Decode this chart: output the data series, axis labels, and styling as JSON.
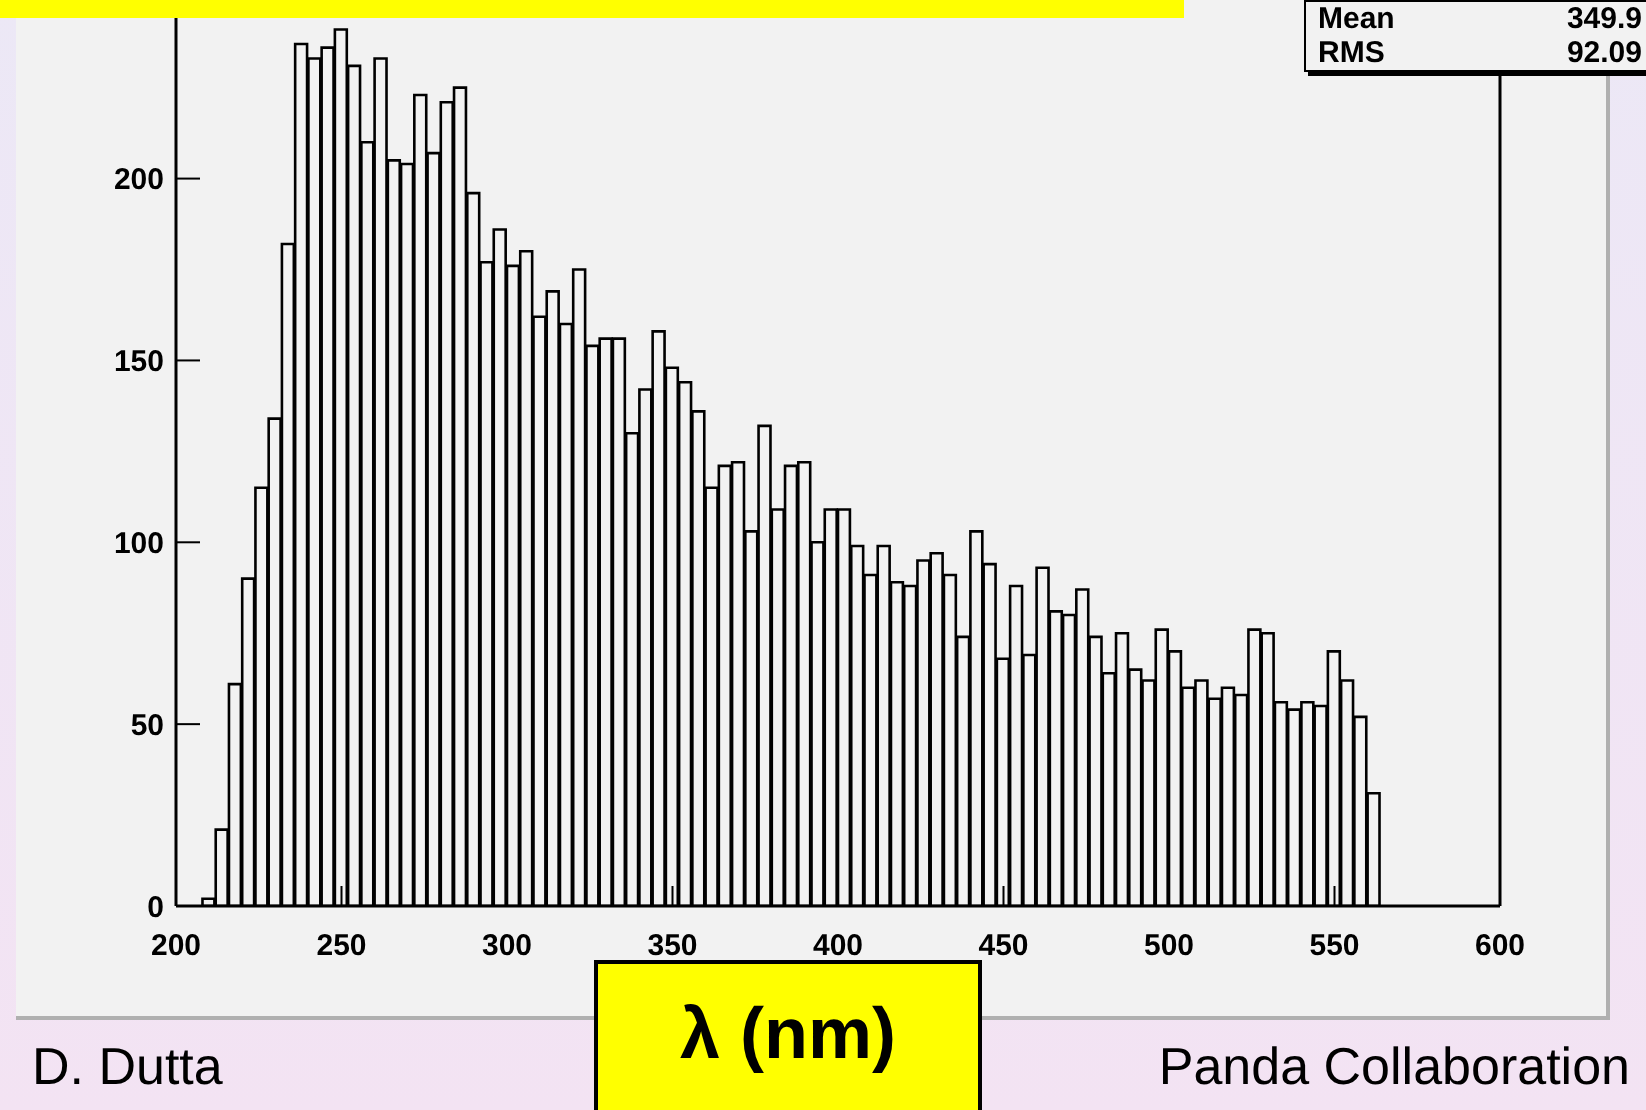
{
  "chart_data": {
    "type": "histogram",
    "xlabel": "λ (nm)",
    "annotations": [
      "Mean 349.9",
      "RMS 92.09",
      "D. Dutta",
      "Panda Collaboration"
    ],
    "bins": [
      200,
      204,
      208,
      212,
      216,
      220,
      224,
      228,
      232,
      236,
      240,
      244,
      248,
      252,
      256,
      260,
      264,
      268,
      272,
      276,
      280,
      284,
      288,
      292,
      296,
      300,
      304,
      308,
      312,
      316,
      320,
      324,
      328,
      332,
      336,
      340,
      344,
      348,
      352,
      356,
      360,
      364,
      368,
      372,
      376,
      380,
      384,
      388,
      392,
      396,
      400,
      404,
      408,
      412,
      416,
      420,
      424,
      428,
      432,
      436,
      440,
      444,
      448,
      452,
      456,
      460,
      464,
      468,
      472,
      476,
      480,
      484,
      488,
      492,
      496,
      500,
      504,
      508,
      512,
      516,
      520,
      524,
      528,
      532,
      536,
      540,
      544,
      548,
      552,
      556,
      560,
      564,
      568,
      572,
      576,
      580,
      584,
      588,
      592,
      596,
      600
    ],
    "values": [
      0,
      0,
      2,
      21,
      61,
      90,
      115,
      134,
      182,
      237,
      233,
      236,
      241,
      231,
      210,
      233,
      205,
      204,
      223,
      207,
      221,
      225,
      196,
      177,
      186,
      176,
      180,
      162,
      169,
      160,
      175,
      154,
      156,
      156,
      130,
      142,
      158,
      148,
      144,
      136,
      115,
      121,
      122,
      103,
      132,
      109,
      121,
      122,
      100,
      109,
      109,
      99,
      91,
      99,
      89,
      88,
      95,
      97,
      91,
      74,
      103,
      94,
      68,
      88,
      69,
      93,
      81,
      80,
      87,
      74,
      64,
      75,
      65,
      62,
      76,
      70,
      60,
      62,
      57,
      60,
      58,
      76,
      75,
      56,
      54,
      56,
      55,
      70,
      62,
      52,
      31,
      0,
      0,
      0,
      0,
      0,
      0,
      0,
      0,
      0
    ],
    "color": "#000000",
    "xlim": [
      200,
      600
    ],
    "xticks": [
      200,
      250,
      300,
      350,
      400,
      450,
      500,
      550,
      600
    ],
    "ylim": [
      0,
      248
    ],
    "yticks": [
      0,
      50,
      100,
      150,
      200
    ]
  }
}
